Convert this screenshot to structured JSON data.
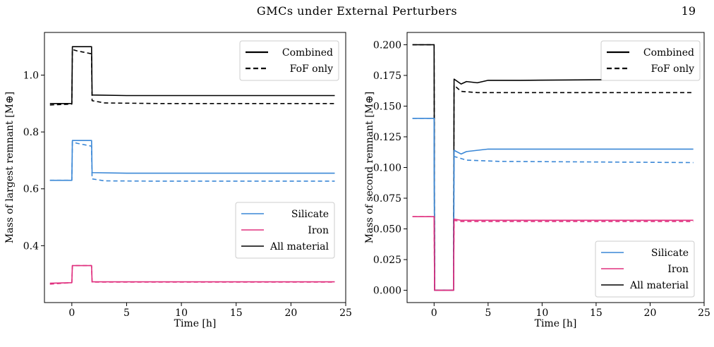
{
  "page": {
    "running_title": "GMCs under External Perturbers",
    "page_number": "19"
  },
  "chart_data": [
    {
      "type": "line",
      "ylabel": "Mass of largest remnant [M⊕]",
      "xlabel": "Time [h]",
      "xlim": [
        -2.5,
        25
      ],
      "ylim": [
        0.2,
        1.15
      ],
      "xticks": [
        0,
        5,
        10,
        15,
        20,
        25
      ],
      "xtick_labels": [
        "0",
        "5",
        "10",
        "15",
        "20",
        "25"
      ],
      "yticks": [
        0.4,
        0.6,
        0.8,
        1.0
      ],
      "ytick_labels": [
        "0.4",
        "0.6",
        "0.8",
        "1.0"
      ],
      "grid": false,
      "legends": [
        {
          "placement": "top-right",
          "entries": [
            {
              "label": "Combined",
              "style": "solid",
              "color": "#000000"
            },
            {
              "label": "FoF only",
              "style": "dashed",
              "color": "#000000"
            }
          ]
        },
        {
          "placement": "right",
          "entries": [
            {
              "label": "Silicate",
              "style": "solid",
              "color": "#3a87d6"
            },
            {
              "label": "Iron",
              "style": "solid",
              "color": "#e0307f"
            },
            {
              "label": "All material",
              "style": "solid",
              "color": "#000000"
            }
          ]
        }
      ],
      "series": [
        {
          "material": "All material",
          "method": "Combined",
          "color": "#000000",
          "dash": false,
          "x": [
            -2,
            0,
            0.05,
            1.8,
            1.85,
            5,
            24
          ],
          "y": [
            0.9,
            0.9,
            1.1,
            1.1,
            0.93,
            0.928,
            0.928
          ]
        },
        {
          "material": "All material",
          "method": "FoF only",
          "color": "#000000",
          "dash": true,
          "x": [
            -2,
            0,
            0.05,
            0.5,
            1.8,
            1.85,
            3,
            8,
            24
          ],
          "y": [
            0.895,
            0.898,
            1.09,
            1.085,
            1.075,
            0.91,
            0.902,
            0.9,
            0.9
          ]
        },
        {
          "material": "Silicate",
          "method": "Combined",
          "color": "#3a87d6",
          "dash": false,
          "x": [
            -2,
            0,
            0.05,
            1.8,
            1.85,
            5,
            24
          ],
          "y": [
            0.63,
            0.63,
            0.77,
            0.77,
            0.657,
            0.655,
            0.655
          ]
        },
        {
          "material": "Silicate",
          "method": "FoF only",
          "color": "#3a87d6",
          "dash": true,
          "x": [
            -2,
            0,
            0.05,
            0.5,
            1.8,
            1.85,
            3,
            8,
            24
          ],
          "y": [
            0.63,
            0.63,
            0.765,
            0.76,
            0.75,
            0.635,
            0.628,
            0.627,
            0.627
          ]
        },
        {
          "material": "Iron",
          "method": "Combined",
          "color": "#e0307f",
          "dash": false,
          "x": [
            -2,
            0,
            0.05,
            1.8,
            1.85,
            24
          ],
          "y": [
            0.268,
            0.27,
            0.33,
            0.33,
            0.273,
            0.273
          ]
        },
        {
          "material": "Iron",
          "method": "FoF only",
          "color": "#e0307f",
          "dash": true,
          "x": [
            -2,
            0,
            0.05,
            1.8,
            1.85,
            24
          ],
          "y": [
            0.265,
            0.27,
            0.33,
            0.33,
            0.272,
            0.272
          ]
        }
      ]
    },
    {
      "type": "line",
      "ylabel": "Mass of second remnant [M⊕]",
      "xlabel": "Time [h]",
      "xlim": [
        -2.5,
        25
      ],
      "ylim": [
        -0.01,
        0.21
      ],
      "xticks": [
        0,
        5,
        10,
        15,
        20,
        25
      ],
      "xtick_labels": [
        "0",
        "5",
        "10",
        "15",
        "20",
        "25"
      ],
      "yticks": [
        0,
        0.025,
        0.05,
        0.075,
        0.1,
        0.125,
        0.15,
        0.175,
        0.2
      ],
      "ytick_labels": [
        "0.000",
        "0.025",
        "0.050",
        "0.075",
        "0.100",
        "0.125",
        "0.150",
        "0.175",
        "0.200"
      ],
      "grid": false,
      "legends": [
        {
          "placement": "top-right",
          "entries": [
            {
              "label": "Combined",
              "style": "solid",
              "color": "#000000"
            },
            {
              "label": "FoF only",
              "style": "dashed",
              "color": "#000000"
            }
          ]
        },
        {
          "placement": "bottom-right",
          "entries": [
            {
              "label": "Silicate",
              "style": "solid",
              "color": "#3a87d6"
            },
            {
              "label": "Iron",
              "style": "solid",
              "color": "#e0307f"
            },
            {
              "label": "All material",
              "style": "solid",
              "color": "#000000"
            }
          ]
        }
      ],
      "series": [
        {
          "material": "All material",
          "method": "Combined",
          "color": "#000000",
          "dash": false,
          "x": [
            -2,
            0,
            0.05,
            1.8,
            1.85,
            2.5,
            3,
            4,
            5,
            8,
            24
          ],
          "y": [
            0.2,
            0.2,
            0,
            0,
            0.172,
            0.168,
            0.17,
            0.169,
            0.171,
            0.171,
            0.172
          ]
        },
        {
          "material": "All material",
          "method": "FoF only",
          "color": "#000000",
          "dash": true,
          "x": [
            -2,
            0,
            0.05,
            1.8,
            1.85,
            2.5,
            4,
            8,
            24
          ],
          "y": [
            0.2,
            0.2,
            0,
            0,
            0.167,
            0.162,
            0.161,
            0.161,
            0.161
          ]
        },
        {
          "material": "Silicate",
          "method": "Combined",
          "color": "#3a87d6",
          "dash": false,
          "x": [
            -2,
            0,
            0.05,
            1.8,
            1.85,
            2.5,
            3,
            4,
            5,
            8,
            24
          ],
          "y": [
            0.14,
            0.14,
            0,
            0,
            0.114,
            0.111,
            0.113,
            0.114,
            0.115,
            0.115,
            0.115
          ]
        },
        {
          "material": "Silicate",
          "method": "FoF only",
          "color": "#3a87d6",
          "dash": true,
          "x": [
            -2,
            0,
            0.05,
            1.8,
            1.85,
            3,
            6,
            24
          ],
          "y": [
            0.14,
            0.14,
            0,
            0,
            0.109,
            0.106,
            0.105,
            0.104
          ]
        },
        {
          "material": "Iron",
          "method": "Combined",
          "color": "#e0307f",
          "dash": false,
          "x": [
            -2,
            0,
            0.05,
            1.8,
            1.85,
            2.5,
            24
          ],
          "y": [
            0.06,
            0.06,
            0,
            0,
            0.058,
            0.057,
            0.057
          ]
        },
        {
          "material": "Iron",
          "method": "FoF only",
          "color": "#e0307f",
          "dash": true,
          "x": [
            -2,
            0,
            0.05,
            1.8,
            1.85,
            2.5,
            24
          ],
          "y": [
            0.06,
            0.06,
            0,
            0,
            0.057,
            0.056,
            0.056
          ]
        }
      ]
    }
  ]
}
